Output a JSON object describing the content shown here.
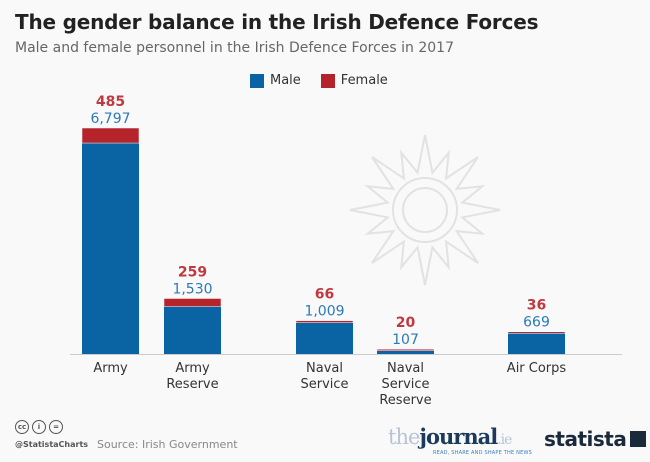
{
  "title": "The gender balance in the Irish Defence Forces",
  "subtitle": "Male and female personnel in the Irish Defence Forces in 2017",
  "colors": {
    "male": "#0a63a3",
    "female": "#b5232b",
    "male_label": "#2b7ab8",
    "female_label": "#c0393f"
  },
  "chart_data": {
    "type": "bar",
    "stacked": true,
    "categories": [
      "Army",
      "Army Reserve",
      "Naval Service",
      "Naval Service Reserve",
      "Air Corps"
    ],
    "category_label_lines": [
      [
        "Army"
      ],
      [
        "Army",
        "Reserve"
      ],
      [
        "Naval",
        "Service"
      ],
      [
        "Naval",
        "Service",
        "Reserve"
      ],
      [
        "Air Corps"
      ]
    ],
    "series": [
      {
        "name": "Male",
        "values": [
          6797,
          1530,
          1009,
          107,
          669
        ],
        "labels": [
          "6,797",
          "1,530",
          "1,009",
          "107",
          "669"
        ]
      },
      {
        "name": "Female",
        "values": [
          485,
          259,
          66,
          20,
          36
        ],
        "labels": [
          "485",
          "259",
          "66",
          "20",
          "36"
        ]
      }
    ],
    "legend": "top",
    "grid": false
  },
  "footer": {
    "source": "Source: Irish Government",
    "handle": "@StatistaCharts",
    "journal_logo": "thejournal.ie",
    "journal_tagline": "READ, SHARE AND SHAPE THE NEWS",
    "statista_logo": "statista"
  }
}
